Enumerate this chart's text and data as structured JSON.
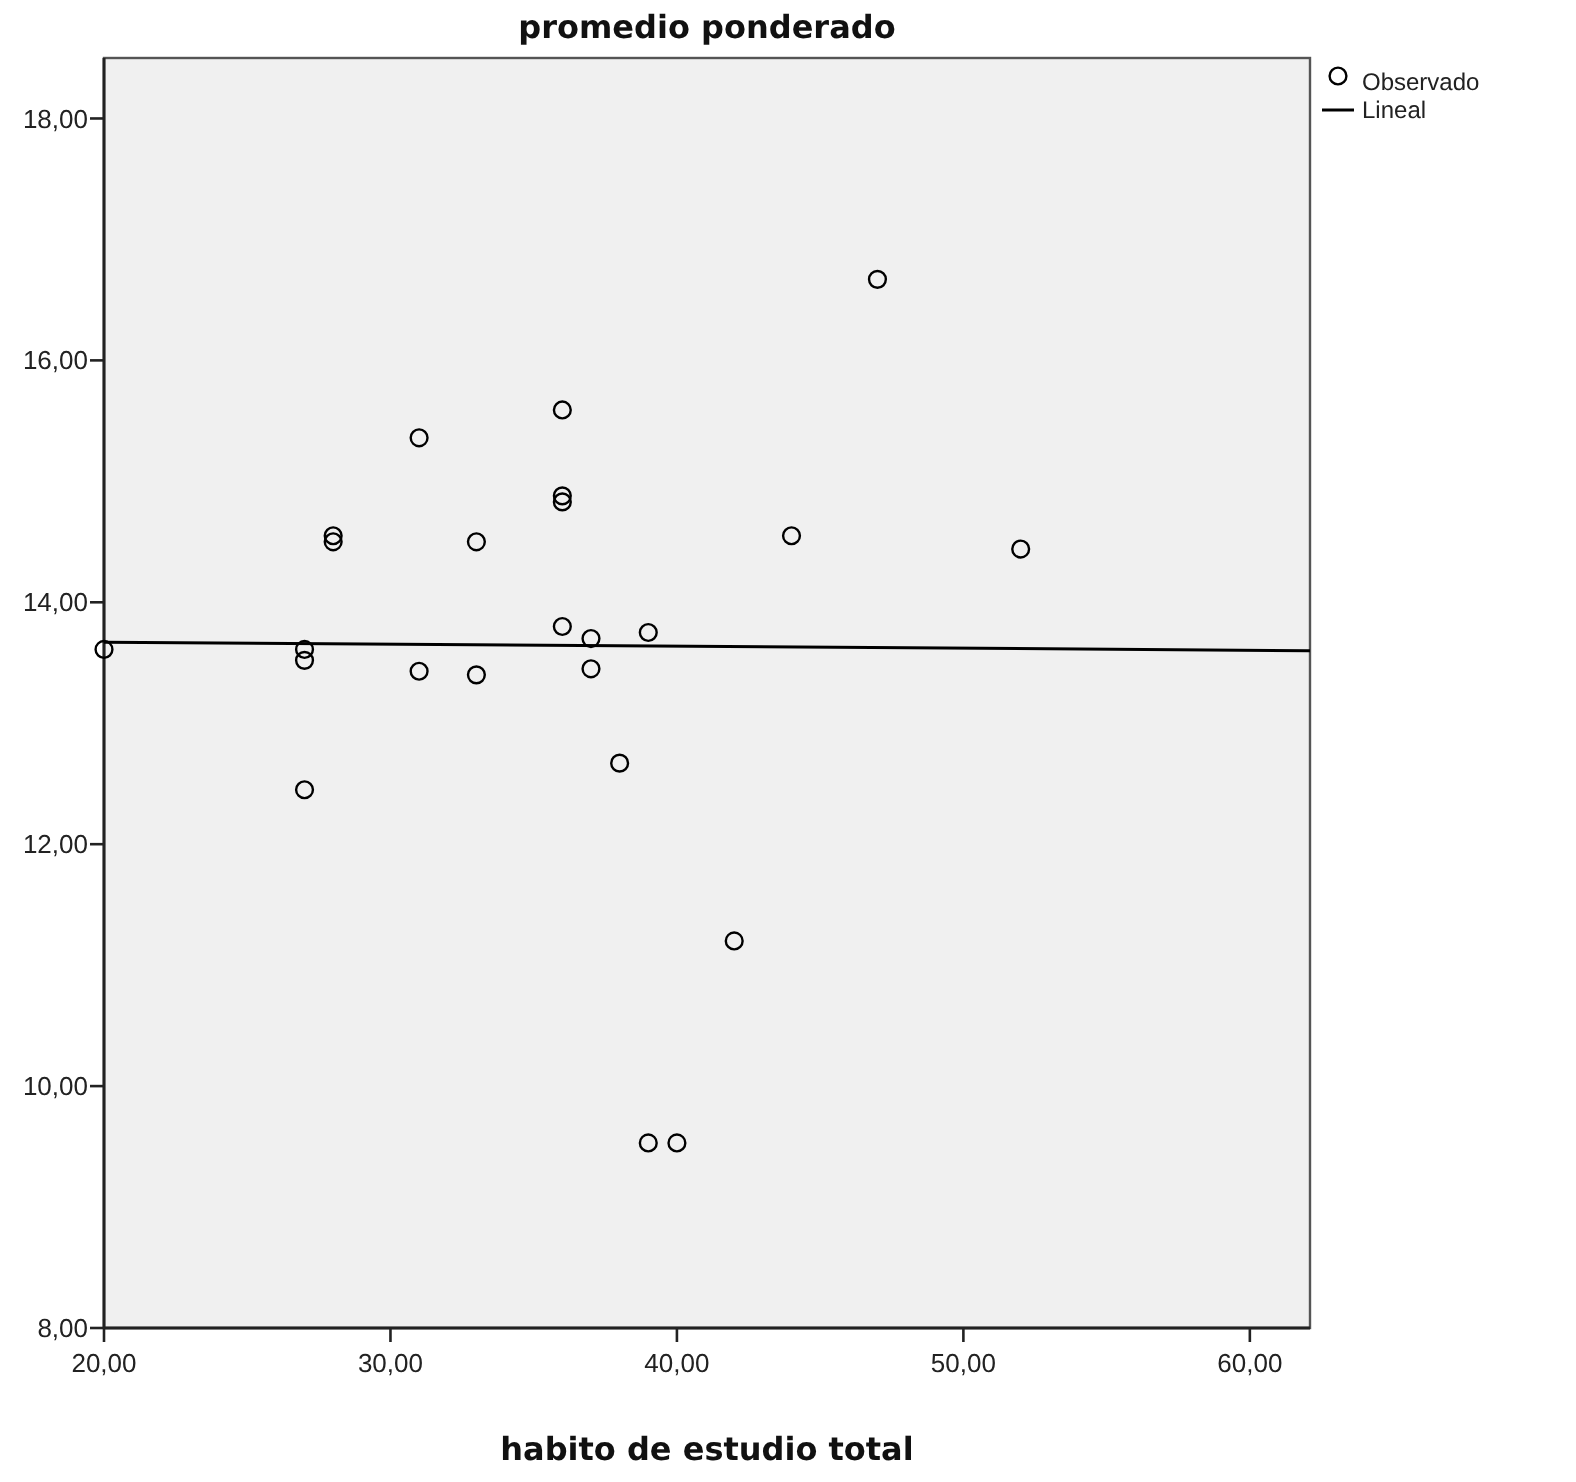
{
  "chart_data": {
    "type": "scatter",
    "title": "promedio ponderado",
    "xlabel": "habito de estudio total",
    "xlim": [
      20,
      62.1
    ],
    "ylim": [
      8,
      18.5
    ],
    "xticks": [
      {
        "value": 20,
        "label": "20,00"
      },
      {
        "value": 30,
        "label": "30,00"
      },
      {
        "value": 40,
        "label": "40,00"
      },
      {
        "value": 50,
        "label": "50,00"
      },
      {
        "value": 60,
        "label": "60,00"
      }
    ],
    "yticks": [
      {
        "value": 8,
        "label": "8,00"
      },
      {
        "value": 10,
        "label": "10,00"
      },
      {
        "value": 12,
        "label": "12,00"
      },
      {
        "value": 14,
        "label": "14,00"
      },
      {
        "value": 16,
        "label": "16,00"
      },
      {
        "value": 18,
        "label": "18,00"
      }
    ],
    "grid": false,
    "legend": "top right",
    "series": [
      {
        "name": "Observado",
        "marker": "circle",
        "color": "#000000",
        "x": [
          20,
          27,
          27,
          27,
          28,
          28,
          31,
          31,
          33,
          33,
          36,
          36,
          36,
          36,
          37,
          37,
          38,
          39,
          39,
          40,
          42,
          44,
          47,
          52
        ],
        "values": [
          13.61,
          13.61,
          13.52,
          12.45,
          14.55,
          14.5,
          15.36,
          13.43,
          14.5,
          13.4,
          15.59,
          14.88,
          14.83,
          13.8,
          13.7,
          13.45,
          12.67,
          13.75,
          9.53,
          9.53,
          11.2,
          14.55,
          16.67,
          14.44
        ]
      },
      {
        "name": "Lineal",
        "type": "line",
        "color": "#000000",
        "line_style": "solid",
        "x": [
          20,
          62.1
        ],
        "values": [
          13.67,
          13.6
        ]
      }
    ]
  }
}
